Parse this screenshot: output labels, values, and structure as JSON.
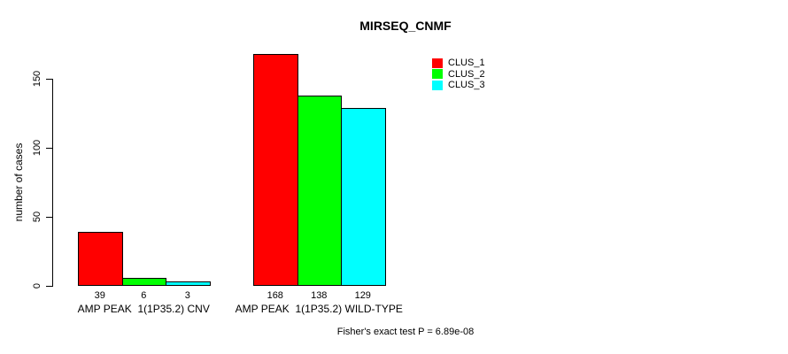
{
  "chart_data": {
    "type": "bar",
    "title": "MIRSEQ_CNMF",
    "xlabel": "",
    "ylabel": "number of cases",
    "categories": [
      "AMP PEAK  1(1P35.2) CNV",
      "AMP PEAK  1(1P35.2) WILD-TYPE"
    ],
    "series": [
      {
        "name": "CLUS_1",
        "color": "#FF0000",
        "values": [
          39,
          168
        ]
      },
      {
        "name": "CLUS_2",
        "color": "#00FF00",
        "values": [
          6,
          138
        ]
      },
      {
        "name": "CLUS_3",
        "color": "#00FFFF",
        "values": [
          3,
          129
        ]
      }
    ],
    "yticks": [
      0,
      50,
      100,
      150
    ],
    "ylim": [
      0,
      150
    ],
    "grid": false,
    "show_value_labels": true,
    "legend_position": "top-right",
    "bar_border_color": "#000000",
    "axis_color": "#000000",
    "background_color": "#FFFFFF"
  },
  "footer": {
    "text": "Fisher's exact test P = 6.89e-08"
  }
}
